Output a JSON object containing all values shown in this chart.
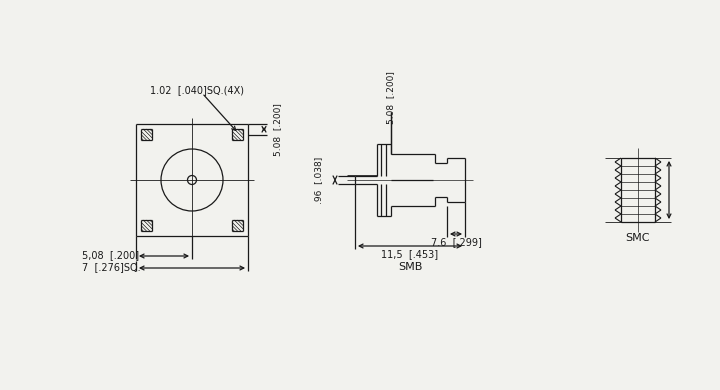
{
  "bg_color": "#f2f2ee",
  "line_color": "#1a1a1a",
  "text_color": "#1a1a1a",
  "font_size": 7.0,
  "labels": {
    "corner_dim": "1.02  [.040]SQ.(4X)",
    "left_dim1": "5,08  [.200]",
    "left_dim2": "7  [.276]SQ.",
    "vert_top": "5.08  [.200]",
    "pin_dim": ".96  [.038]",
    "horiz_dim1": "7.6  [.299]",
    "horiz_dim2": "11,5  [.453]",
    "smb_label": "SMB",
    "smc_label": "SMC"
  }
}
